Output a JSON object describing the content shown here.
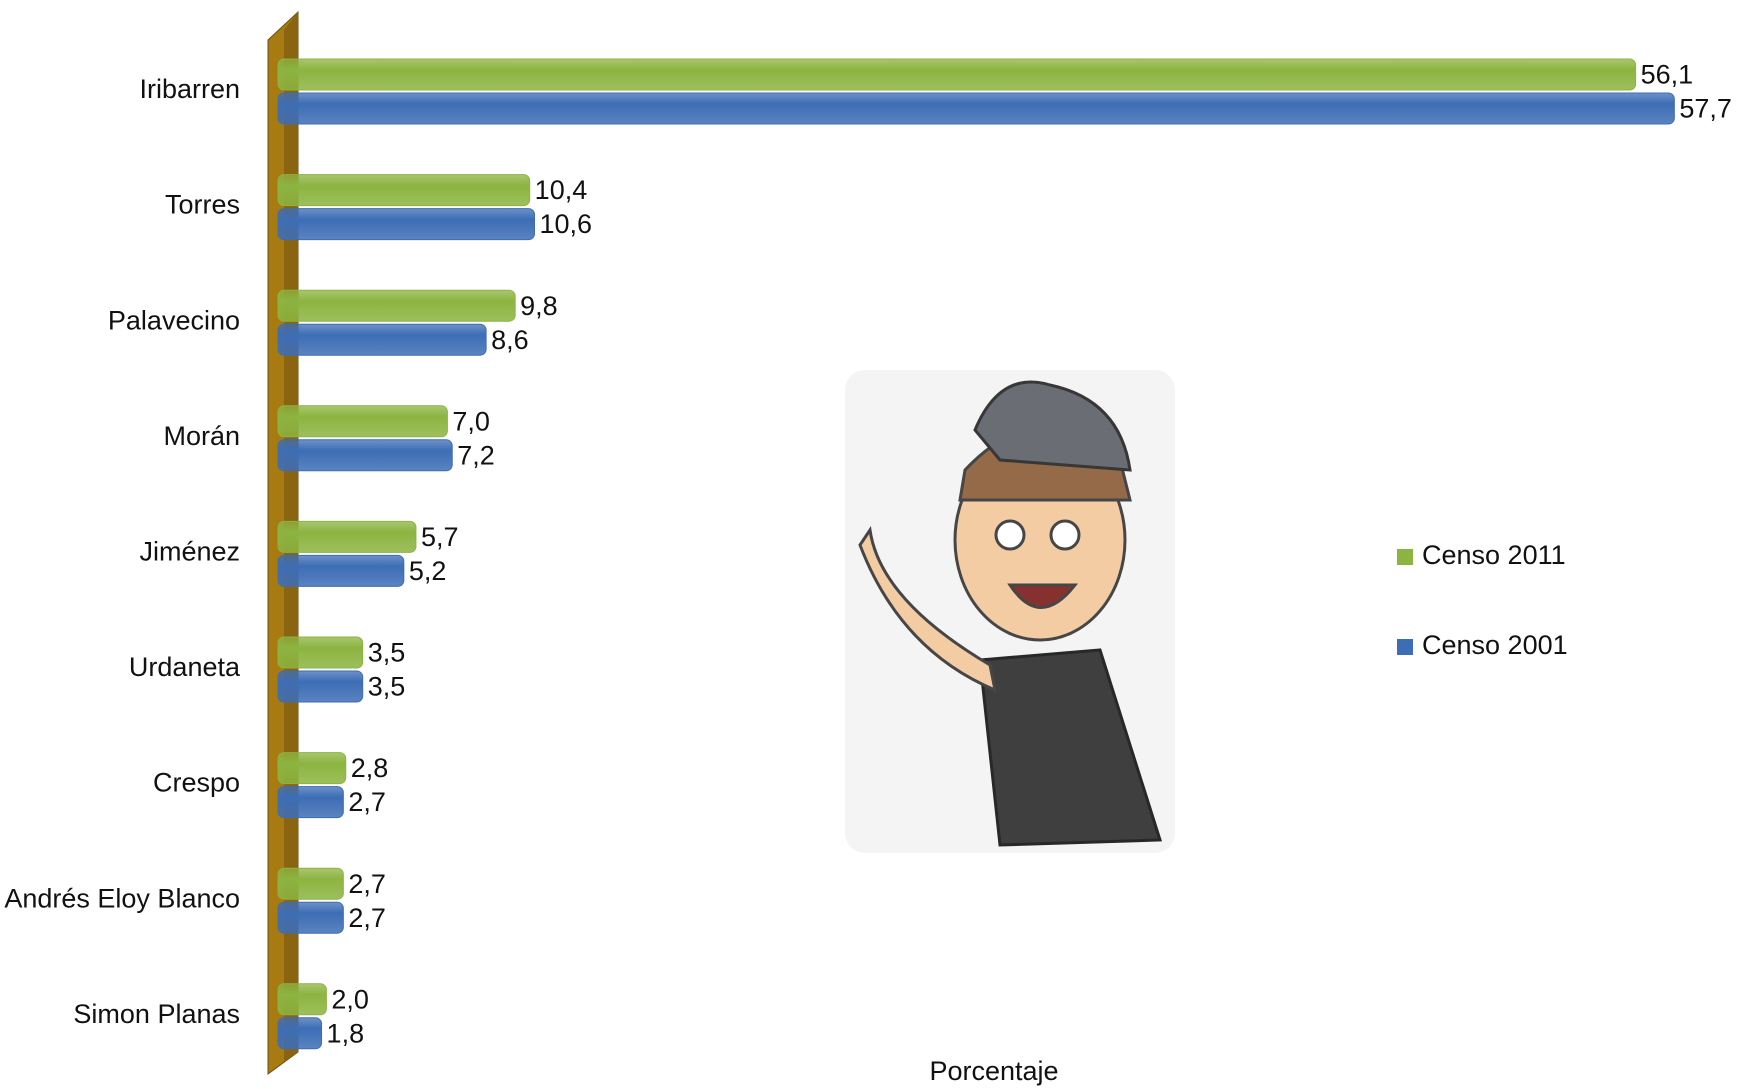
{
  "chart_data": {
    "type": "hbar",
    "categories": [
      "Iribarren",
      "Torres",
      "Palavecino",
      "Morán",
      "Jiménez",
      "Urdaneta",
      "Crespo",
      "Andrés Eloy Blanco",
      "Simon Planas"
    ],
    "series": [
      {
        "name": "Censo 2011",
        "color": "#8cb440",
        "values": [
          56.1,
          10.4,
          9.8,
          7.0,
          5.7,
          3.5,
          2.8,
          2.7,
          2.0
        ],
        "value_labels": [
          "56,1",
          "10,4",
          "9,8",
          "7,0",
          "5,7",
          "3,5",
          "2,8",
          "2,7",
          "2,0"
        ]
      },
      {
        "name": "Censo 2001",
        "color": "#3d6db5",
        "values": [
          57.7,
          10.6,
          8.6,
          7.2,
          5.2,
          3.5,
          2.7,
          2.7,
          1.8
        ],
        "value_labels": [
          "57,7",
          "10,6",
          "8,6",
          "7,2",
          "5,2",
          "3,5",
          "2,7",
          "2,7",
          "1,8"
        ]
      }
    ],
    "xlabel": "Porcentaje",
    "xlim": [
      0,
      60
    ],
    "legend": "right"
  }
}
